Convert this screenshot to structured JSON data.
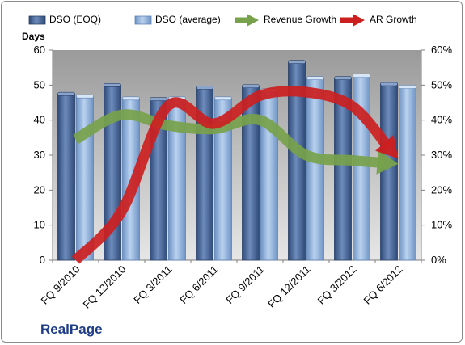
{
  "chart_data": {
    "type": "bar",
    "categories": [
      "FQ 9/2010",
      "FQ 12/2010",
      "FQ 3/2011",
      "FQ 6/2011",
      "FQ 9/2011",
      "FQ 12/2011",
      "FQ 3/2012",
      "FQ 6/2012"
    ],
    "series": [
      {
        "name": "DSO (EOQ)",
        "type": "bar",
        "axis": "left",
        "color": "#4a6a9a",
        "values": [
          47.5,
          50,
          46,
          49.3,
          49.7,
          56.6,
          52,
          50.3
        ]
      },
      {
        "name": "DSO (average)",
        "type": "bar",
        "axis": "left",
        "color": "#8fb1dc",
        "values": [
          46.8,
          46.2,
          46.2,
          46.2,
          48.5,
          52,
          52.7,
          49.5
        ]
      },
      {
        "name": "Revenue Growth",
        "type": "line-arrow",
        "axis": "right",
        "color": "#77a24b",
        "values": [
          0.345,
          0.415,
          0.385,
          0.375,
          0.4,
          0.3,
          0.285,
          0.275
        ]
      },
      {
        "name": "AR Growth",
        "type": "line-arrow",
        "axis": "right",
        "color": "#cc1f1f",
        "values": [
          0.0,
          0.14,
          0.44,
          0.39,
          0.47,
          0.48,
          0.44,
          0.29
        ]
      }
    ],
    "ylabel": "Days",
    "ylim": [
      0,
      60
    ],
    "yticks": [
      0,
      10,
      20,
      30,
      40,
      50,
      60
    ],
    "y2lim": [
      0,
      0.6
    ],
    "y2ticks": [
      "0%",
      "10%",
      "20%",
      "30%",
      "40%",
      "50%",
      "60%"
    ],
    "grid": false,
    "legend_position": "top",
    "plot_background": "#c0c0c0"
  },
  "brand": "RealPage"
}
